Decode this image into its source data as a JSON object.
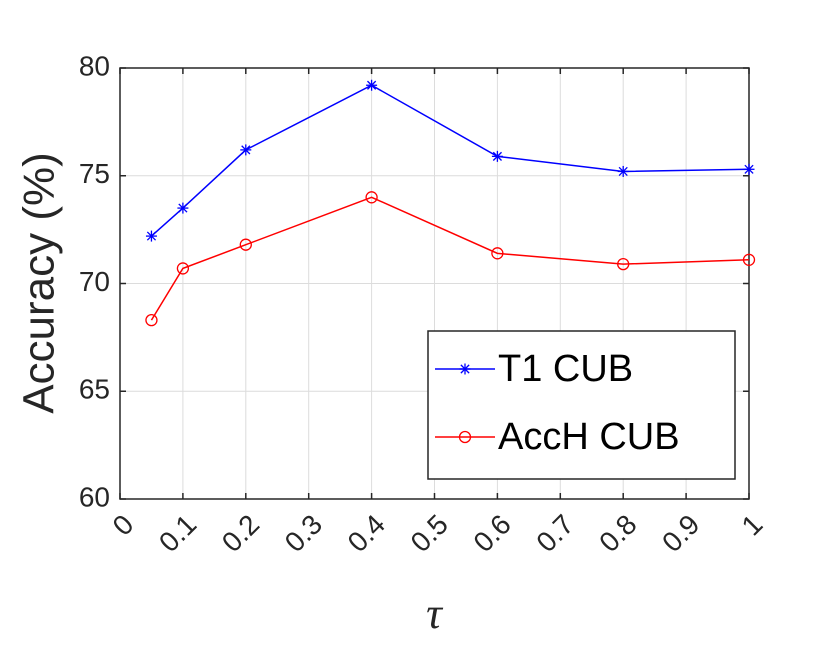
{
  "chart_data": {
    "type": "line",
    "xlabel": "τ",
    "ylabel": "Accuracy (%)",
    "x": [
      0.05,
      0.1,
      0.2,
      0.4,
      0.6,
      0.8,
      1.0
    ],
    "series": [
      {
        "name": "T1 CUB",
        "color": "#0000ff",
        "marker": "*",
        "values": [
          72.2,
          73.5,
          76.2,
          79.2,
          75.9,
          75.2,
          75.3
        ]
      },
      {
        "name": "AccH CUB",
        "color": "#ff0000",
        "marker": "o",
        "values": [
          68.3,
          70.7,
          71.8,
          74.0,
          71.4,
          70.9,
          71.1
        ]
      }
    ],
    "xlim": [
      0,
      1
    ],
    "xticks": [
      0,
      0.1,
      0.2,
      0.3,
      0.4,
      0.5,
      0.6,
      0.7,
      0.8,
      0.9,
      1
    ],
    "ylim": [
      60,
      80
    ],
    "yticks": [
      60,
      65,
      70,
      75,
      80
    ],
    "grid": true,
    "legend": "southeast"
  }
}
